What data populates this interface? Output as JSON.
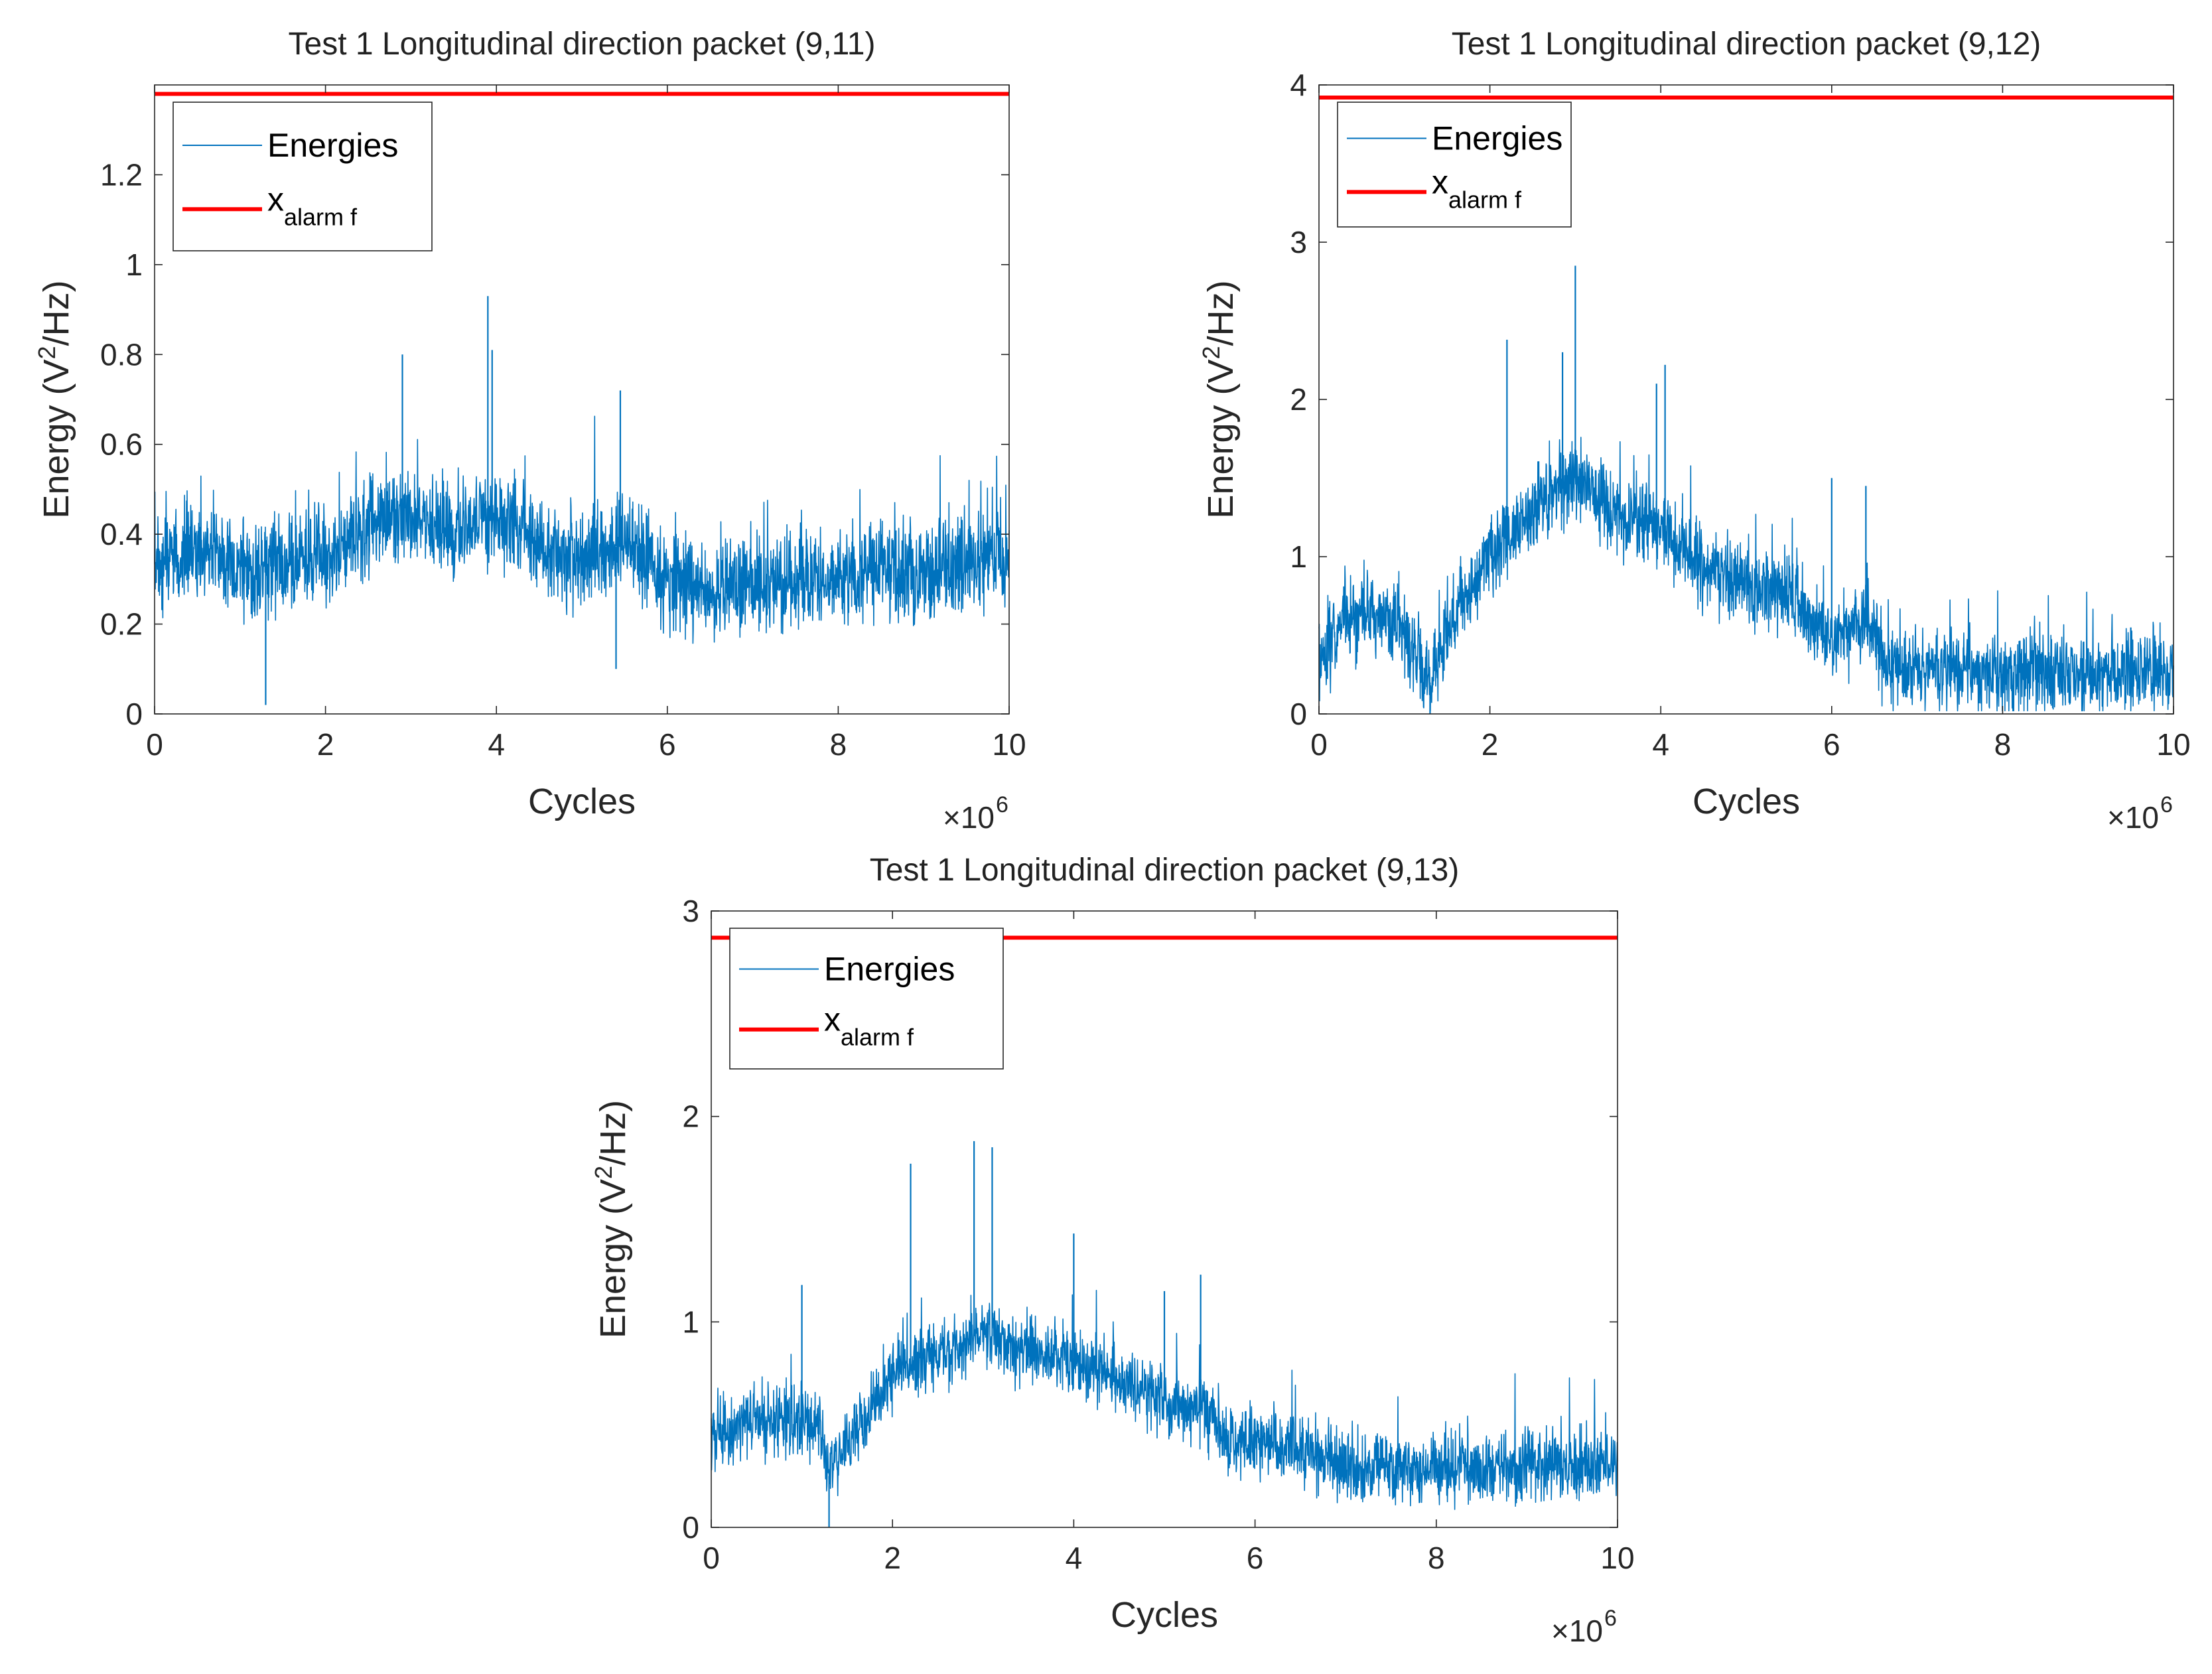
{
  "chart_data": [
    {
      "type": "line",
      "title": "Test 1 Longitudinal direction packet (9,11)",
      "xlabel": "Cycles",
      "ylabel": "Energy (V²/Hz)",
      "ylabel_main": "Energy (V",
      "ylabel_sup": "2",
      "ylabel_tail": "/Hz)",
      "x_multiplier": "×10",
      "x_multiplier_exp": "6",
      "xlim": [
        0,
        10
      ],
      "ylim": [
        0,
        1.4
      ],
      "xticks": [
        0,
        2,
        4,
        6,
        8,
        10
      ],
      "yticks": [
        0,
        0.2,
        0.4,
        0.6,
        0.8,
        1,
        1.2
      ],
      "ytick_labels": [
        "0",
        "0.2",
        "0.4",
        "0.6",
        "0.8",
        "1",
        "1.2"
      ],
      "legend_location": "top-left",
      "series": [
        {
          "name": "Energies",
          "legend_label": "Energies",
          "color": "#0072BD",
          "x": [
            0,
            0.5,
            1,
            1.5,
            2,
            2.5,
            3,
            3.5,
            4,
            4.5,
            5,
            5.5,
            6,
            6.5,
            7,
            7.5,
            8,
            8.5,
            9,
            9.5,
            10
          ],
          "values": [
            0.33,
            0.36,
            0.32,
            0.33,
            0.35,
            0.42,
            0.43,
            0.41,
            0.45,
            0.37,
            0.34,
            0.38,
            0.3,
            0.28,
            0.29,
            0.29,
            0.3,
            0.32,
            0.3,
            0.33,
            0.35
          ],
          "noise": 0.09,
          "spikes": [
            [
              1.3,
              0.02
            ],
            [
              2.9,
              0.8
            ],
            [
              3.9,
              0.93
            ],
            [
              3.95,
              0.81
            ],
            [
              5.45,
              0.72
            ],
            [
              5.4,
              0.1
            ]
          ]
        },
        {
          "name": "x_alarm f",
          "legend_label": "x",
          "legend_sub": "alarm f",
          "color": "#FF0000",
          "y": 1.38
        }
      ]
    },
    {
      "type": "line",
      "title": "Test 1 Longitudinal direction packet (9,12)",
      "xlabel": "Cycles",
      "ylabel": "Energy (V²/Hz)",
      "ylabel_main": "Energy (V",
      "ylabel_sup": "2",
      "ylabel_tail": "/Hz)",
      "x_multiplier": "×10",
      "x_multiplier_exp": "6",
      "xlim": [
        0,
        10
      ],
      "ylim": [
        0,
        4
      ],
      "xticks": [
        0,
        2,
        4,
        6,
        8,
        10
      ],
      "yticks": [
        0,
        1,
        2,
        3,
        4
      ],
      "ytick_labels": [
        "0",
        "1",
        "2",
        "3",
        "4"
      ],
      "legend_location": "top-left",
      "series": [
        {
          "name": "Energies",
          "legend_label": "Energies",
          "color": "#0072BD",
          "x": [
            0,
            0.3,
            0.6,
            1,
            1.3,
            1.5,
            2,
            2.5,
            3,
            3.5,
            4,
            4.5,
            5,
            5.5,
            6,
            6.5,
            6.6,
            7,
            8,
            9,
            9.5,
            10
          ],
          "values": [
            0.35,
            0.6,
            0.65,
            0.55,
            0.2,
            0.5,
            1.0,
            1.3,
            1.5,
            1.25,
            1.2,
            0.95,
            0.8,
            0.75,
            0.5,
            0.6,
            0.3,
            0.3,
            0.25,
            0.25,
            0.3,
            0.25
          ],
          "noise": 0.22,
          "spikes": [
            [
              1.3,
              0.0
            ],
            [
              2.2,
              2.38
            ],
            [
              3.0,
              2.85
            ],
            [
              2.85,
              2.3
            ],
            [
              4.05,
              2.22
            ],
            [
              3.95,
              2.1
            ],
            [
              6.0,
              1.5
            ],
            [
              6.4,
              1.45
            ],
            [
              9.5,
              0.55
            ]
          ]
        },
        {
          "name": "x_alarm f",
          "legend_label": "x",
          "legend_sub": "alarm f",
          "color": "#FF0000",
          "y": 3.92
        }
      ]
    },
    {
      "type": "line",
      "title": "Test 1 Longitudinal direction packet (9,13)",
      "xlabel": "Cycles",
      "ylabel": "Energy (V²/Hz)",
      "ylabel_main": "Energy (V",
      "ylabel_sup": "2",
      "ylabel_tail": "/Hz)",
      "x_multiplier": "×10",
      "x_multiplier_exp": "6",
      "xlim": [
        0,
        10
      ],
      "ylim": [
        0,
        3
      ],
      "xticks": [
        0,
        2,
        4,
        6,
        8,
        10
      ],
      "yticks": [
        0,
        1,
        2,
        3
      ],
      "ytick_labels": [
        "0",
        "1",
        "2",
        "3"
      ],
      "legend_location": "top-left",
      "series": [
        {
          "name": "Energies",
          "legend_label": "Energies",
          "color": "#0072BD",
          "x": [
            0,
            0.4,
            0.8,
            1.2,
            1.3,
            1.5,
            2,
            2.5,
            3,
            3.5,
            4,
            4.5,
            5,
            5.5,
            5.8,
            6,
            6.3,
            7,
            8,
            9,
            10
          ],
          "values": [
            0.45,
            0.5,
            0.52,
            0.5,
            0.25,
            0.4,
            0.75,
            0.85,
            0.95,
            0.85,
            0.8,
            0.7,
            0.62,
            0.55,
            0.4,
            0.42,
            0.4,
            0.3,
            0.28,
            0.3,
            0.3
          ],
          "noise": 0.14,
          "spikes": [
            [
              1.3,
              0.0
            ],
            [
              2.2,
              1.77
            ],
            [
              2.9,
              1.88
            ],
            [
              3.1,
              1.85
            ],
            [
              4.0,
              1.43
            ],
            [
              5.4,
              1.23
            ],
            [
              5.0,
              1.15
            ],
            [
              1.0,
              1.18
            ]
          ]
        },
        {
          "name": "x_alarm f",
          "legend_label": "x",
          "legend_sub": "alarm f",
          "color": "#FF0000",
          "y": 2.87
        }
      ]
    }
  ]
}
